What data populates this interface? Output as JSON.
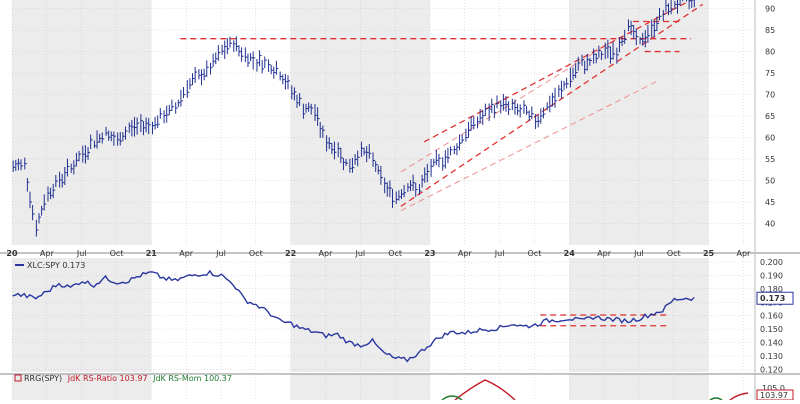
{
  "colors": {
    "price_bar": "#1f2f8f",
    "trendline": "#e03030",
    "channel_light": "#f08f8f",
    "ratio_line": "#2a36a0",
    "rs_ratio": "#c01828",
    "rs_mom": "#1f7a2f",
    "value_box_border": "#2a36a0",
    "panel_shade": "#ececec",
    "panel_white": "#ffffff",
    "grid": "#c8c8c8"
  },
  "chart_data": [
    {
      "type": "ohlc",
      "title": "",
      "x_ticks": [
        "20",
        "Apr",
        "Jul",
        "Oct",
        "21",
        "Apr",
        "Jul",
        "Oct",
        "22",
        "Apr",
        "Jul",
        "Oct",
        "23",
        "Apr",
        "Jul",
        "Oct",
        "24",
        "Apr",
        "Jul",
        "Oct",
        "25",
        "Apr"
      ],
      "y_ticks": [
        "40",
        "45",
        "50",
        "55",
        "60",
        "65",
        "70",
        "75",
        "80",
        "85",
        "90"
      ],
      "ylim": [
        35,
        92
      ],
      "grid": true,
      "series": [
        {
          "x": [
            "2020-01",
            "2020-02",
            "2020-03",
            "2020-04",
            "2020-05",
            "2020-06",
            "2020-07",
            "2020-08",
            "2020-09",
            "2020-10",
            "2020-11",
            "2020-12",
            "2021-01",
            "2021-02",
            "2021-03",
            "2021-04",
            "2021-05",
            "2021-06",
            "2021-07",
            "2021-08",
            "2021-09",
            "2021-10",
            "2021-11",
            "2021-12",
            "2022-01",
            "2022-02",
            "2022-03",
            "2022-04",
            "2022-05",
            "2022-06",
            "2022-07",
            "2022-08",
            "2022-09",
            "2022-10",
            "2022-11",
            "2022-12",
            "2023-01",
            "2023-02",
            "2023-03",
            "2023-04",
            "2023-05",
            "2023-06",
            "2023-07",
            "2023-08",
            "2023-09",
            "2023-10",
            "2023-11",
            "2023-12",
            "2024-01",
            "2024-02",
            "2024-03",
            "2024-04",
            "2024-05",
            "2024-06",
            "2024-07",
            "2024-08",
            "2024-09",
            "2024-10",
            "2024-11"
          ],
          "values": [
            53,
            54,
            39,
            47,
            50,
            53,
            56,
            59,
            61,
            59,
            62,
            63,
            63,
            65,
            67,
            72,
            74,
            76,
            80,
            82,
            79,
            78,
            77,
            75,
            71,
            67,
            66,
            59,
            57,
            53,
            57,
            55,
            49,
            46,
            49,
            48,
            53,
            55,
            57,
            61,
            64,
            66,
            68,
            67,
            66,
            64,
            67,
            70,
            74,
            77,
            78,
            80,
            80,
            86,
            82,
            85,
            89,
            91,
            92
          ]
        }
      ],
      "annotations": [
        {
          "kind": "horizontal",
          "from": "2021-03",
          "to": "2024-11",
          "y": 83
        },
        {
          "kind": "channel-upper",
          "from": "2022-12",
          "to": "2024-11",
          "y_from": 59,
          "y_to": 92
        },
        {
          "kind": "channel-lower",
          "from": "2022-10",
          "to": "2024-12",
          "y_from": 44,
          "y_to": 91
        },
        {
          "kind": "channel-light-upper",
          "from": "2022-10",
          "to": "2024-04",
          "y_from": 52,
          "y_to": 82
        },
        {
          "kind": "channel-light-lower",
          "from": "2022-10",
          "to": "2024-08",
          "y_from": 43,
          "y_to": 73
        },
        {
          "kind": "horizontal-short",
          "from": "2024-06",
          "to": "2024-10",
          "y": 87
        },
        {
          "kind": "horizontal-short",
          "from": "2024-07",
          "to": "2024-10",
          "y": 80
        }
      ]
    },
    {
      "type": "line",
      "legend": "XLC:SPY 0.173",
      "last_value": "0.173",
      "y_ticks": [
        "0.120",
        "0.130",
        "0.140",
        "0.150",
        "0.160",
        "0.170",
        "0.180",
        "0.190",
        "0.200"
      ],
      "ylim": [
        0.118,
        0.203
      ],
      "grid": true,
      "series": [
        {
          "name": "XLC:SPY",
          "x": [
            "2020-01",
            "2020-02",
            "2020-03",
            "2020-04",
            "2020-05",
            "2020-06",
            "2020-07",
            "2020-08",
            "2020-09",
            "2020-10",
            "2020-11",
            "2020-12",
            "2021-01",
            "2021-02",
            "2021-03",
            "2021-04",
            "2021-05",
            "2021-06",
            "2021-07",
            "2021-08",
            "2021-09",
            "2021-10",
            "2021-11",
            "2021-12",
            "2022-01",
            "2022-02",
            "2022-03",
            "2022-04",
            "2022-05",
            "2022-06",
            "2022-07",
            "2022-08",
            "2022-09",
            "2022-10",
            "2022-11",
            "2022-12",
            "2023-01",
            "2023-02",
            "2023-03",
            "2023-04",
            "2023-05",
            "2023-06",
            "2023-07",
            "2023-08",
            "2023-09",
            "2023-10",
            "2023-11",
            "2023-12",
            "2024-01",
            "2024-02",
            "2024-03",
            "2024-04",
            "2024-05",
            "2024-06",
            "2024-07",
            "2024-08",
            "2024-09",
            "2024-10",
            "2024-11"
          ],
          "values": [
            0.176,
            0.175,
            0.173,
            0.178,
            0.184,
            0.181,
            0.186,
            0.183,
            0.188,
            0.185,
            0.186,
            0.19,
            0.192,
            0.188,
            0.186,
            0.189,
            0.191,
            0.192,
            0.19,
            0.184,
            0.172,
            0.168,
            0.163,
            0.156,
            0.154,
            0.15,
            0.148,
            0.145,
            0.146,
            0.14,
            0.138,
            0.141,
            0.132,
            0.128,
            0.127,
            0.132,
            0.139,
            0.145,
            0.148,
            0.147,
            0.149,
            0.15,
            0.151,
            0.154,
            0.152,
            0.153,
            0.156,
            0.157,
            0.158,
            0.156,
            0.159,
            0.158,
            0.157,
            0.156,
            0.158,
            0.161,
            0.164,
            0.172,
            0.173
          ]
        }
      ],
      "annotations": [
        {
          "kind": "horizontal",
          "from": "2023-10",
          "to": "2024-09",
          "y": 0.1605
        },
        {
          "kind": "horizontal",
          "from": "2023-10",
          "to": "2024-09",
          "y": 0.1525
        }
      ]
    },
    {
      "type": "line",
      "legend": "RRG(SPY) JdK RS-Ratio 103.97 JdK RS-Mom 100.37",
      "last_value": "103.97",
      "y_ticks": [
        "105.0"
      ],
      "series": [
        {
          "name": "JdK RS-Ratio",
          "value": 103.97
        },
        {
          "name": "JdK RS-Mom",
          "value": 100.37
        }
      ]
    }
  ],
  "legend": {
    "ratio_text": "XLC:SPY 0.173",
    "rrg_prefix": "RRG(SPY)",
    "rrg_ratio": "JdK RS-Ratio 103.97",
    "rrg_mom": "JdK RS-Mom 100.37"
  }
}
